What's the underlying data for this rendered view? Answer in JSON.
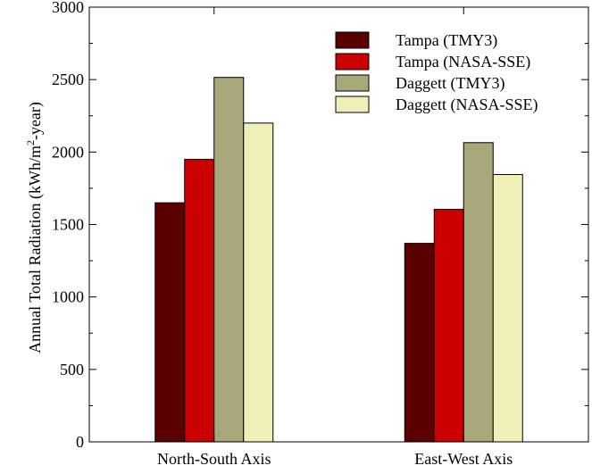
{
  "chart_data": {
    "type": "bar",
    "title": "",
    "xlabel": "",
    "ylabel": "Annual Total Radiation (kWh/m²-year)",
    "ylabel_parts": {
      "prefix": "Annual Total Radiation (kWh/m",
      "superscript": "2",
      "suffix": "-year)"
    },
    "ylim": [
      0,
      3000
    ],
    "yticks": [
      0,
      500,
      1000,
      1500,
      2000,
      2500,
      3000
    ],
    "categories": [
      "North-South Axis",
      "East-West Axis"
    ],
    "series": [
      {
        "name": "Tampa (TMY3)",
        "color": "#5a0000",
        "values": [
          1650,
          1370
        ]
      },
      {
        "name": "Tampa (NASA-SSE)",
        "color": "#cc0000",
        "values": [
          1950,
          1605
        ]
      },
      {
        "name": "Daggett (TMY3)",
        "color": "#a8a87a",
        "values": [
          2515,
          2065
        ]
      },
      {
        "name": "Daggett (NASA-SSE)",
        "color": "#f0efb8",
        "values": [
          2200,
          1845
        ]
      }
    ],
    "legend_position": "top-right",
    "grid": false
  }
}
